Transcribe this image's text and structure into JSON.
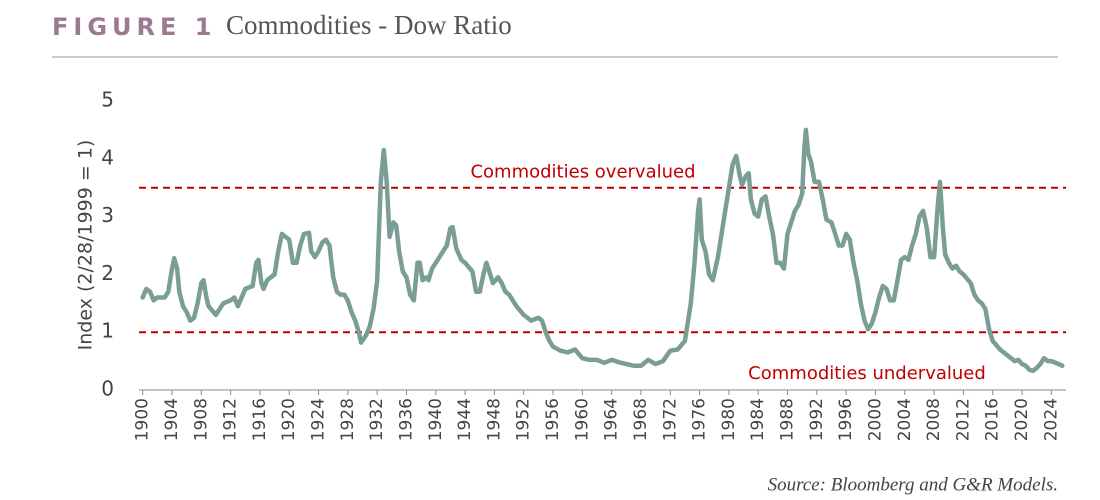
{
  "chart_data": {
    "type": "line",
    "figure_label": "FIGURE 1",
    "title": "Commodities - Dow Ratio",
    "y_label": "Index (2/28/1999 = 1)",
    "source": "Source: Bloomberg and G&R Models.",
    "xlim": [
      1899.5,
      2026
    ],
    "ylim": [
      0,
      5
    ],
    "yticks": [
      0,
      1,
      2,
      3,
      4,
      5
    ],
    "xticks": [
      1900,
      1904,
      1908,
      1912,
      1916,
      1920,
      1924,
      1928,
      1932,
      1936,
      1940,
      1944,
      1948,
      1952,
      1956,
      1960,
      1964,
      1968,
      1972,
      1976,
      1980,
      1984,
      1988,
      1992,
      1996,
      2000,
      2004,
      2008,
      2012,
      2016,
      2020,
      2024
    ],
    "reference_lines": [
      {
        "value": 3.5,
        "label": "Commodities overvalued",
        "color": "#c00000"
      },
      {
        "value": 1,
        "label": "Commodities undervalued",
        "color": "#c00000"
      }
    ],
    "series": [
      {
        "color": "#7a9e96",
        "x": [
          1900,
          1900.5,
          1901,
          1901.5,
          1902,
          1903,
          1903.5,
          1904,
          1904.3,
          1904.7,
          1905,
          1905.5,
          1906,
          1906.5,
          1907,
          1907.5,
          1908,
          1908.3,
          1908.7,
          1909,
          1910,
          1910.5,
          1911,
          1912,
          1912.5,
          1913,
          1913.5,
          1914,
          1915,
          1915.5,
          1915.8,
          1916.2,
          1916.5,
          1917,
          1918,
          1918.5,
          1919,
          1920,
          1920.5,
          1921,
          1921.5,
          1922,
          1922.7,
          1923,
          1923.5,
          1924,
          1924.5,
          1925,
          1925.5,
          1926,
          1926.5,
          1927,
          1927.5,
          1928,
          1928.5,
          1929,
          1929.5,
          1929.8,
          1930.5,
          1931,
          1931.5,
          1932,
          1932.5,
          1932.9,
          1933.3,
          1933.7,
          1934.2,
          1934.6,
          1935,
          1935.5,
          1936,
          1936.5,
          1937,
          1937.5,
          1937.8,
          1938.2,
          1938.7,
          1939,
          1939.5,
          1940,
          1941,
          1941.5,
          1942,
          1942.3,
          1942.8,
          1943.5,
          1944,
          1945,
          1945.5,
          1946,
          1946.5,
          1946.9,
          1947.3,
          1947.8,
          1948.5,
          1949,
          1949.5,
          1950,
          1951,
          1952,
          1953,
          1954,
          1954.5,
          1955,
          1955.5,
          1956,
          1957,
          1958,
          1959,
          1960,
          1961,
          1962,
          1963,
          1964,
          1965,
          1966,
          1967,
          1968,
          1969,
          1970,
          1971,
          1972,
          1973,
          1974,
          1974.8,
          1975.3,
          1975.8,
          1976,
          1976.3,
          1976.8,
          1977.3,
          1977.8,
          1978.5,
          1979,
          1979.5,
          1980,
          1980.5,
          1981,
          1981.5,
          1981.8,
          1982.3,
          1982.7,
          1983,
          1983.5,
          1984,
          1984.5,
          1985,
          1985.5,
          1986,
          1986.5,
          1987,
          1987.5,
          1988,
          1988.5,
          1989,
          1989.5,
          1990,
          1990.3,
          1990.5,
          1990.8,
          1991.2,
          1991.7,
          1992.3,
          1992.8,
          1993.3,
          1994,
          1994.5,
          1995,
          1995.5,
          1996,
          1996.5,
          1997,
          1997.5,
          1998,
          1998.5,
          1999,
          1999.5,
          2000,
          2000.5,
          2001,
          2001.5,
          2002,
          2002.5,
          2003,
          2003.5,
          2004,
          2004.5,
          2005,
          2005.5,
          2006,
          2006.5,
          2007,
          2007.5,
          2008,
          2008.5,
          2008.8,
          2009.2,
          2009.5,
          2010,
          2010.5,
          2011,
          2011.5,
          2012,
          2013,
          2013.5,
          2014,
          2014.5,
          2015,
          2015.5,
          2016,
          2017,
          2018,
          2019,
          2019.5,
          2020,
          2020.5,
          2021,
          2021.5,
          2022,
          2022.5,
          2023,
          2023.5,
          2024,
          2025,
          2025.5
        ],
        "values": [
          1.6,
          1.75,
          1.7,
          1.55,
          1.6,
          1.6,
          1.7,
          2.1,
          2.28,
          2.1,
          1.7,
          1.45,
          1.35,
          1.2,
          1.25,
          1.5,
          1.85,
          1.9,
          1.6,
          1.45,
          1.3,
          1.4,
          1.5,
          1.55,
          1.6,
          1.45,
          1.6,
          1.75,
          1.8,
          2.2,
          2.25,
          1.85,
          1.75,
          1.9,
          2.0,
          2.4,
          2.7,
          2.6,
          2.2,
          2.2,
          2.5,
          2.7,
          2.72,
          2.4,
          2.3,
          2.4,
          2.55,
          2.6,
          2.5,
          1.95,
          1.7,
          1.65,
          1.65,
          1.55,
          1.35,
          1.2,
          1.0,
          0.82,
          0.95,
          1.1,
          1.4,
          1.9,
          3.6,
          4.15,
          3.6,
          2.65,
          2.9,
          2.85,
          2.4,
          2.05,
          1.95,
          1.65,
          1.55,
          2.2,
          2.2,
          1.9,
          1.95,
          1.9,
          2.1,
          2.2,
          2.4,
          2.5,
          2.8,
          2.82,
          2.45,
          2.25,
          2.2,
          2.05,
          1.7,
          1.7,
          2.0,
          2.2,
          2.05,
          1.85,
          1.95,
          1.85,
          1.7,
          1.65,
          1.45,
          1.3,
          1.2,
          1.25,
          1.2,
          1.0,
          0.85,
          0.75,
          0.68,
          0.65,
          0.7,
          0.55,
          0.52,
          0.52,
          0.47,
          0.52,
          0.48,
          0.45,
          0.42,
          0.42,
          0.52,
          0.45,
          0.5,
          0.68,
          0.7,
          0.85,
          1.5,
          2.2,
          3.1,
          3.3,
          2.6,
          2.4,
          2.0,
          1.9,
          2.3,
          2.7,
          3.1,
          3.5,
          3.9,
          4.05,
          3.7,
          3.55,
          3.7,
          3.75,
          3.3,
          3.05,
          3.0,
          3.3,
          3.35,
          3.0,
          2.7,
          2.2,
          2.2,
          2.1,
          2.7,
          2.9,
          3.1,
          3.2,
          3.4,
          4.2,
          4.5,
          4.1,
          3.95,
          3.6,
          3.6,
          3.3,
          2.95,
          2.9,
          2.7,
          2.5,
          2.5,
          2.7,
          2.6,
          2.2,
          1.9,
          1.5,
          1.2,
          1.05,
          1.15,
          1.35,
          1.6,
          1.8,
          1.75,
          1.55,
          1.55,
          1.9,
          2.25,
          2.3,
          2.25,
          2.5,
          2.7,
          3.0,
          3.1,
          2.8,
          2.3,
          2.3,
          3.2,
          3.6,
          2.8,
          2.35,
          2.2,
          2.1,
          2.15,
          2.05,
          2.0,
          1.85,
          1.65,
          1.55,
          1.5,
          1.4,
          1.05,
          0.85,
          0.7,
          0.6,
          0.5,
          0.52,
          0.45,
          0.42,
          0.35,
          0.33,
          0.38,
          0.45,
          0.55,
          0.5,
          0.5,
          0.45,
          0.42
        ]
      }
    ]
  }
}
